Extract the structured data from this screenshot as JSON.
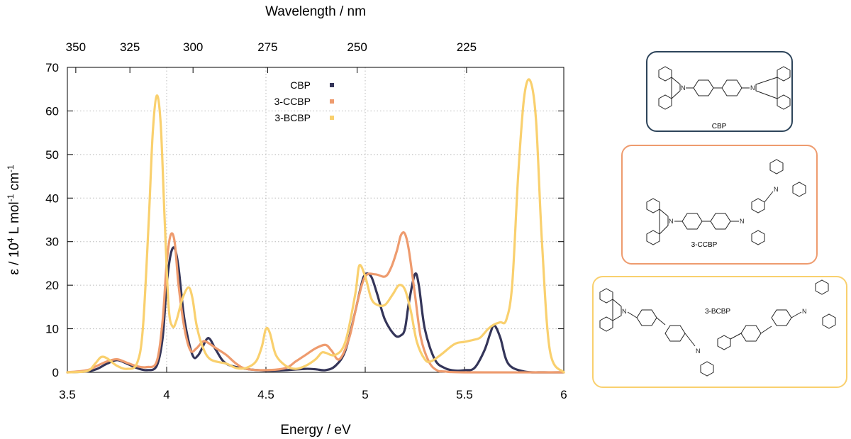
{
  "chart_data": {
    "type": "line",
    "xlabel": "Energy / eV",
    "x2label": "Wavelength / nm",
    "ylabel_parts": [
      "ε / 10",
      "4",
      " L mol",
      "-1",
      " cm",
      "-1"
    ],
    "xlim": [
      3.5,
      6.0
    ],
    "ylim": [
      0,
      70
    ],
    "x_ticks": [
      "3.5",
      "4",
      "4.5",
      "5",
      "5.5",
      "6"
    ],
    "y_ticks": [
      "0",
      "10",
      "20",
      "30",
      "40",
      "50",
      "60",
      "70"
    ],
    "x2_ticks": [
      {
        "label": "350",
        "nm": 350
      },
      {
        "label": "325",
        "nm": 325
      },
      {
        "label": "300",
        "nm": 300
      },
      {
        "label": "275",
        "nm": 275
      },
      {
        "label": "250",
        "nm": 250
      },
      {
        "label": "225",
        "nm": 225
      }
    ],
    "grid": true,
    "legend_position": "top-center",
    "series": [
      {
        "name": "CBP",
        "color": "#343559",
        "x": [
          3.5,
          3.6,
          3.65,
          3.7,
          3.75,
          3.8,
          3.85,
          3.9,
          3.95,
          3.98,
          4.0,
          4.02,
          4.04,
          4.06,
          4.09,
          4.13,
          4.16,
          4.2,
          4.22,
          4.25,
          4.3,
          4.4,
          4.5,
          4.6,
          4.7,
          4.75,
          4.8,
          4.85,
          4.9,
          4.95,
          4.98,
          5.0,
          5.03,
          5.06,
          5.1,
          5.15,
          5.18,
          5.2,
          5.22,
          5.25,
          5.27,
          5.3,
          5.35,
          5.4,
          5.45,
          5.5,
          5.55,
          5.6,
          5.63,
          5.65,
          5.68,
          5.72,
          5.8,
          5.9,
          6.0
        ],
        "y": [
          0,
          0.2,
          0.8,
          2.0,
          2.8,
          2.0,
          1.0,
          0.5,
          1.5,
          8,
          20,
          27,
          28.5,
          24,
          12,
          4,
          4,
          7.5,
          7.5,
          5,
          2,
          0.8,
          0.4,
          0.5,
          0.8,
          0.7,
          0.5,
          1.5,
          5,
          14,
          20,
          22.5,
          22,
          18,
          12,
          8.5,
          8.5,
          10,
          16,
          22.5,
          20,
          10,
          3,
          1,
          0.4,
          0.5,
          1,
          5,
          9,
          10.8,
          8,
          2,
          0.2,
          0,
          0
        ]
      },
      {
        "name": "3-CCBP",
        "color": "#EE9B6E",
        "x": [
          3.5,
          3.6,
          3.65,
          3.7,
          3.75,
          3.8,
          3.85,
          3.9,
          3.95,
          3.98,
          4.0,
          4.02,
          4.04,
          4.06,
          4.09,
          4.12,
          4.15,
          4.18,
          4.2,
          4.25,
          4.3,
          4.35,
          4.4,
          4.5,
          4.6,
          4.65,
          4.7,
          4.75,
          4.8,
          4.83,
          4.87,
          4.92,
          4.96,
          5.0,
          5.05,
          5.1,
          5.13,
          5.16,
          5.18,
          5.2,
          5.22,
          5.25,
          5.28,
          5.32,
          5.36,
          5.4,
          5.5,
          6.0
        ],
        "y": [
          0,
          0.5,
          1.5,
          2.5,
          3,
          2.2,
          1.4,
          1.2,
          2.5,
          12,
          25,
          31.5,
          30,
          20,
          10,
          5,
          5.5,
          7,
          7,
          5.5,
          4,
          2,
          0.8,
          0.5,
          1,
          2.5,
          4,
          5.5,
          6.3,
          5,
          3,
          8,
          16,
          22,
          22.5,
          22,
          24,
          28,
          31.5,
          31.8,
          28,
          18,
          8,
          2.5,
          0.5,
          0.2,
          0,
          0
        ]
      },
      {
        "name": "3-BCBP",
        "color": "#F9D06E",
        "x": [
          3.5,
          3.6,
          3.64,
          3.67,
          3.7,
          3.75,
          3.8,
          3.85,
          3.88,
          3.91,
          3.93,
          3.95,
          3.97,
          3.99,
          4.01,
          4.03,
          4.05,
          4.08,
          4.11,
          4.13,
          4.15,
          4.18,
          4.22,
          4.3,
          4.35,
          4.4,
          4.45,
          4.48,
          4.5,
          4.52,
          4.55,
          4.6,
          4.65,
          4.7,
          4.75,
          4.78,
          4.8,
          4.85,
          4.9,
          4.95,
          4.97,
          5.0,
          5.03,
          5.06,
          5.1,
          5.14,
          5.17,
          5.2,
          5.23,
          5.26,
          5.3,
          5.33,
          5.38,
          5.45,
          5.5,
          5.55,
          5.58,
          5.62,
          5.65,
          5.68,
          5.71,
          5.74,
          5.77,
          5.8,
          5.83,
          5.86,
          5.89,
          5.93,
          6.0
        ],
        "y": [
          0,
          0.3,
          2,
          3.5,
          3.2,
          1.5,
          0.8,
          2,
          10,
          35,
          55,
          63.5,
          57,
          35,
          15,
          10.5,
          12,
          17,
          19.5,
          17,
          11,
          6,
          3,
          2,
          1,
          1,
          2.5,
          6,
          10,
          9,
          4,
          1.5,
          0.8,
          1.5,
          3,
          4.5,
          4.5,
          4,
          7,
          18,
          24.5,
          22,
          17,
          15.5,
          15.5,
          18,
          20,
          19,
          14,
          7,
          3,
          2.5,
          4,
          6.5,
          7,
          7.5,
          8,
          10,
          11,
          11.5,
          12,
          20,
          45,
          63,
          67,
          58,
          30,
          5,
          0
        ]
      }
    ]
  },
  "molecules": [
    {
      "label": "CBP",
      "color": "#2D445A"
    },
    {
      "label": "3-CCBP",
      "color": "#EE9B6E"
    },
    {
      "label": "3-BCBP",
      "color": "#F9D06E"
    }
  ],
  "atoms": {
    "nitrogen": "N"
  }
}
